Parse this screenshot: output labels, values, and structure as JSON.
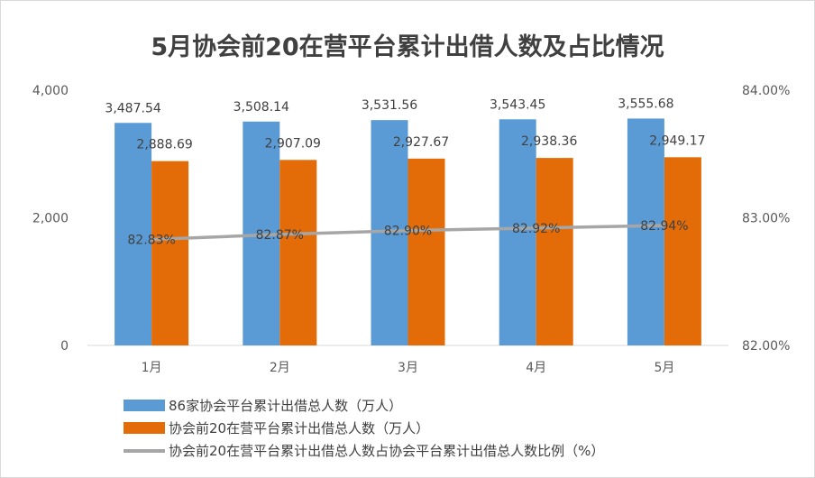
{
  "title": "5月协会前20在营平台累计出借人数及占比情况",
  "chart_data": {
    "type": "bar",
    "categories": [
      "1月",
      "2月",
      "3月",
      "4月",
      "5月"
    ],
    "series": [
      {
        "name": "86家协会平台累计出借总人数（万人）",
        "type": "bar",
        "axis": "left",
        "color": "#5b9bd5",
        "values": [
          3487.54,
          3508.14,
          3531.56,
          3543.45,
          3555.68
        ],
        "labels": [
          "3,487.54",
          "3,508.14",
          "3,531.56",
          "3,543.45",
          "3,555.68"
        ]
      },
      {
        "name": "协会前20在营平台累计出借总人数（万人）",
        "type": "bar",
        "axis": "left",
        "color": "#e36c09",
        "values": [
          2888.69,
          2907.09,
          2927.67,
          2938.36,
          2949.17
        ],
        "labels": [
          "2,888.69",
          "2,907.09",
          "2,927.67",
          "2,938.36",
          "2,949.17"
        ]
      },
      {
        "name": "协会前20在营平台累计出借总人数占协会平台累计出借总人数比例（%）",
        "type": "line",
        "axis": "right",
        "color": "#a6a6a6",
        "values": [
          82.83,
          82.87,
          82.9,
          82.92,
          82.94
        ],
        "labels": [
          "82.83%",
          "82.87%",
          "82.90%",
          "82.92%",
          "82.94%"
        ]
      }
    ],
    "y_left": {
      "ylim": [
        0,
        4000
      ],
      "ticks": [
        0,
        2000,
        4000
      ],
      "tick_labels": [
        "0",
        "2,000",
        "4,000"
      ]
    },
    "y_right": {
      "ylim": [
        82,
        84
      ],
      "ticks": [
        82,
        83,
        84
      ],
      "tick_labels": [
        "82.00%",
        "83.00%",
        "84.00%"
      ]
    },
    "grid": false,
    "legend_position": "bottom-left"
  }
}
